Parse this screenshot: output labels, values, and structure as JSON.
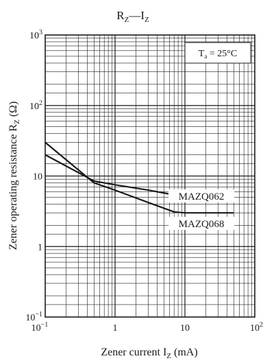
{
  "chart_data": {
    "type": "line",
    "title_main": "R",
    "title_sub1": "Z",
    "title_dash": "—I",
    "title_sub2": "Z",
    "xlabel_main": "Zener current  I",
    "xlabel_sub": "Z",
    "xlabel_unit": "  (mA)",
    "ylabel_main": "Zener operating resistance  R",
    "ylabel_sub": "Z",
    "ylabel_unit": "  (Ω)",
    "annotation_main": "T",
    "annotation_sub": "a",
    "annotation_rest": " = 25°C",
    "x_scale": "log",
    "y_scale": "log",
    "xlim": [
      0.1,
      100
    ],
    "ylim": [
      0.1,
      1000
    ],
    "x_ticks": [
      {
        "value": 0.1,
        "base": "10",
        "exp": "−1"
      },
      {
        "value": 1,
        "base": "1",
        "exp": ""
      },
      {
        "value": 10,
        "base": "10",
        "exp": ""
      },
      {
        "value": 100,
        "base": "10",
        "exp": "2"
      }
    ],
    "y_ticks": [
      {
        "value": 0.1,
        "base": "10",
        "exp": "−1"
      },
      {
        "value": 1,
        "base": "1",
        "exp": ""
      },
      {
        "value": 10,
        "base": "10",
        "exp": ""
      },
      {
        "value": 100,
        "base": "10",
        "exp": "2"
      },
      {
        "value": 1000,
        "base": "10",
        "exp": "3"
      }
    ],
    "grid": true,
    "series": [
      {
        "name": "MAZQ062",
        "x": [
          0.1,
          0.5,
          1,
          3,
          7,
          10,
          20,
          50
        ],
        "y": [
          20,
          8.5,
          7.5,
          6.3,
          5.4,
          5.4,
          5.6,
          5.9
        ]
      },
      {
        "name": "MAZQ068",
        "x": [
          0.1,
          0.5,
          1,
          3,
          7,
          10,
          20,
          50
        ],
        "y": [
          30,
          8.0,
          6.3,
          4.2,
          3.1,
          3.0,
          3.0,
          3.0
        ]
      }
    ]
  }
}
